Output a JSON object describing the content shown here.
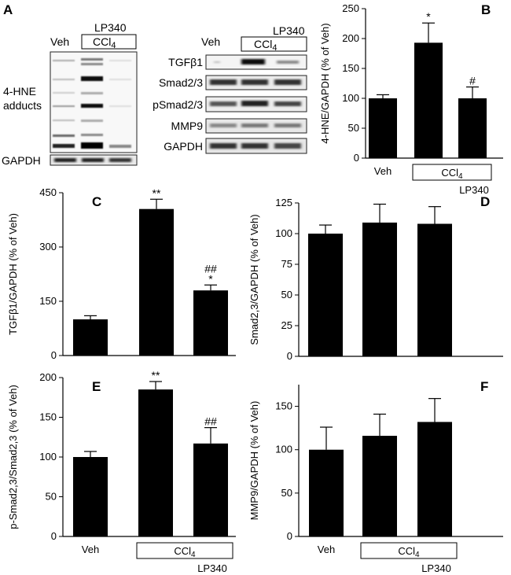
{
  "chart_data": [
    {
      "panel": "B",
      "type": "bar",
      "categories": [
        "Veh",
        "CCl4",
        "CCl4 + LP340"
      ],
      "values": [
        100,
        193,
        100
      ],
      "errors": [
        6,
        33,
        19
      ],
      "annotations": [
        "",
        "*",
        "#"
      ],
      "ylabel": "4-HNE/GAPDH (% of Veh)",
      "ylim": [
        0,
        250
      ],
      "yticks": [
        "0",
        "50",
        "100",
        "150",
        "200",
        "250"
      ],
      "xaxis": {
        "veh": "Veh",
        "treat": "CCl",
        "treat_sub": "4",
        "drug": "LP340"
      }
    },
    {
      "panel": "C",
      "type": "bar",
      "categories": [
        "Veh",
        "CCl4",
        "CCl4 + LP340"
      ],
      "values": [
        100,
        405,
        180
      ],
      "errors": [
        10,
        27,
        15
      ],
      "annotations": [
        "",
        "**",
        "*"
      ],
      "annotations2": [
        "",
        "",
        "##"
      ],
      "ylabel": "TGFβ1/GAPDH (% of Veh)",
      "ylim": [
        0,
        450
      ],
      "yticks": [
        "0",
        "150",
        "300",
        "450"
      ]
    },
    {
      "panel": "D",
      "type": "bar",
      "categories": [
        "Veh",
        "CCl4",
        "CCl4 + LP340"
      ],
      "values": [
        100,
        109,
        108
      ],
      "errors": [
        7,
        15,
        14
      ],
      "annotations": [
        "",
        "",
        ""
      ],
      "ylabel": "Smad2,3/GAPDH (% of Veh)",
      "ylim": [
        0,
        125
      ],
      "yticks": [
        "0",
        "25",
        "50",
        "75",
        "100",
        "125"
      ]
    },
    {
      "panel": "E",
      "type": "bar",
      "categories": [
        "Veh",
        "CCl4",
        "CCl4 + LP340"
      ],
      "values": [
        100,
        185,
        117
      ],
      "errors": [
        7,
        10,
        20
      ],
      "annotations": [
        "",
        "**",
        "##"
      ],
      "ylabel": "p-Smad2,3/Smad2,3 (% of Veh)",
      "ylim": [
        0,
        200
      ],
      "yticks": [
        "0",
        "50",
        "100",
        "150",
        "200"
      ],
      "xaxis": {
        "veh": "Veh",
        "treat": "CCl",
        "treat_sub": "4",
        "drug": "LP340"
      }
    },
    {
      "panel": "F",
      "type": "bar",
      "categories": [
        "Veh",
        "CCl4",
        "CCl4 + LP340"
      ],
      "values": [
        100,
        116,
        132
      ],
      "errors": [
        26,
        25,
        27
      ],
      "annotations": [
        "",
        "",
        ""
      ],
      "ylabel": "MMP9/GAPDH (% of Veh)",
      "ylim": [
        0,
        175
      ],
      "yticks": [
        "0",
        "50",
        "100",
        "150"
      ],
      "xaxis": {
        "veh": "Veh",
        "treat": "CCl",
        "treat_sub": "4",
        "drug": "LP340"
      }
    }
  ],
  "panelA": {
    "label": "A",
    "left": {
      "veh": "Veh",
      "treat": "CCl",
      "treat_sub": "4",
      "drug": "LP340",
      "hne1": "4-HNE",
      "hne2": "adducts",
      "gapdh": "GAPDH"
    },
    "right": {
      "veh": "Veh",
      "treat": "CCl",
      "treat_sub": "4",
      "drug": "LP340",
      "rows": [
        "TGFβ1",
        "Smad2/3",
        "pSmad2/3",
        "MMP9",
        "GAPDH"
      ]
    }
  }
}
